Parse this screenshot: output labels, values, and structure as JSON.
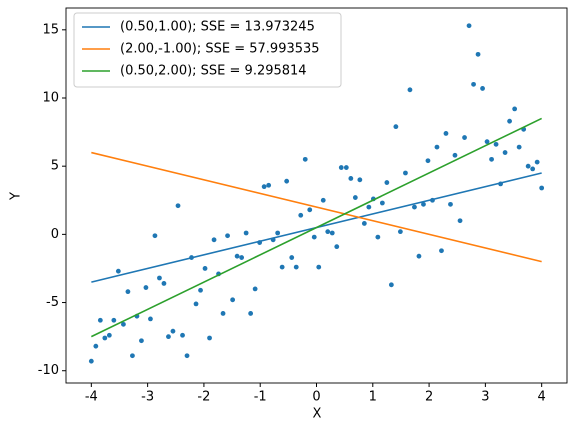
{
  "chart_data": {
    "type": "scatter",
    "x_label": "X",
    "y_label": "Y",
    "xlim": [
      -4.45,
      4.45
    ],
    "ylim": [
      -10.9,
      16.6
    ],
    "xticks": [
      -4,
      -3,
      -2,
      -1,
      0,
      1,
      2,
      3,
      4
    ],
    "yticks": [
      -10,
      -5,
      0,
      5,
      10,
      15
    ],
    "legend": "upper-left",
    "points": {
      "color": "#1f77b4",
      "x": [
        -4.0,
        -3.92,
        -3.84,
        -3.76,
        -3.68,
        -3.6,
        -3.52,
        -3.43,
        -3.35,
        -3.27,
        -3.19,
        -3.11,
        -3.03,
        -2.95,
        -2.87,
        -2.79,
        -2.71,
        -2.63,
        -2.55,
        -2.46,
        -2.38,
        -2.3,
        -2.22,
        -2.14,
        -2.06,
        -1.98,
        -1.9,
        -1.82,
        -1.74,
        -1.66,
        -1.58,
        -1.49,
        -1.41,
        -1.33,
        -1.25,
        -1.17,
        -1.09,
        -1.01,
        -0.93,
        -0.85,
        -0.77,
        -0.69,
        -0.61,
        -0.53,
        -0.44,
        -0.36,
        -0.28,
        -0.2,
        -0.12,
        -0.04,
        0.04,
        0.12,
        0.2,
        0.28,
        0.36,
        0.44,
        0.53,
        0.61,
        0.69,
        0.77,
        0.85,
        0.93,
        1.01,
        1.09,
        1.17,
        1.25,
        1.33,
        1.41,
        1.49,
        1.58,
        1.66,
        1.74,
        1.82,
        1.9,
        1.98,
        2.06,
        2.14,
        2.22,
        2.3,
        2.38,
        2.46,
        2.55,
        2.63,
        2.71,
        2.79,
        2.87,
        2.95,
        3.03,
        3.11,
        3.19,
        3.27,
        3.35,
        3.43,
        3.52,
        3.6,
        3.68,
        3.76,
        3.84,
        3.92,
        4.0
      ],
      "values": [
        -9.3,
        -8.2,
        -6.3,
        -7.6,
        -7.4,
        -6.3,
        -2.7,
        -6.6,
        -4.2,
        -8.9,
        -6.0,
        -7.8,
        -3.9,
        -6.2,
        -0.1,
        -3.2,
        -3.6,
        -7.5,
        -7.1,
        2.1,
        -7.4,
        -8.9,
        -1.7,
        -5.1,
        -4.1,
        -2.5,
        -7.6,
        -0.4,
        -2.9,
        -5.8,
        -0.1,
        -4.8,
        -1.6,
        -1.7,
        0.1,
        -5.8,
        -4.0,
        -0.6,
        3.5,
        3.6,
        -0.4,
        0.1,
        -2.4,
        3.9,
        -1.7,
        -2.4,
        1.4,
        5.5,
        1.8,
        -0.2,
        -2.4,
        2.5,
        0.2,
        0.1,
        -0.9,
        4.9,
        4.9,
        4.1,
        2.7,
        4.0,
        0.8,
        2.0,
        2.6,
        -0.2,
        2.3,
        3.8,
        -3.7,
        7.9,
        0.2,
        4.5,
        10.6,
        2.0,
        -1.6,
        2.2,
        5.4,
        2.5,
        6.4,
        -1.2,
        7.4,
        2.2,
        5.8,
        1.0,
        7.1,
        15.3,
        11.0,
        13.2,
        10.7,
        6.8,
        5.5,
        6.6,
        3.7,
        6.0,
        8.3,
        9.2,
        6.4,
        7.7,
        5.0,
        4.8,
        5.3,
        3.4
      ]
    },
    "series": [
      {
        "name": "(0.50,1.00); SSE = 13.973245",
        "color": "#1f77b4",
        "x": [
          -4,
          4
        ],
        "values": [
          -3.5,
          4.5
        ]
      },
      {
        "name": "(2.00,-1.00); SSE = 57.993535",
        "color": "#ff7f0e",
        "x": [
          -4,
          4
        ],
        "values": [
          6,
          -2
        ]
      },
      {
        "name": "(0.50,2.00); SSE = 9.295814",
        "color": "#2ca02c",
        "x": [
          -4,
          4
        ],
        "values": [
          -7.5,
          8.5
        ]
      }
    ]
  }
}
